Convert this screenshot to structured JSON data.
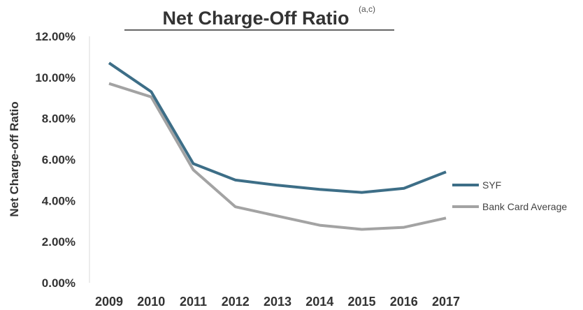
{
  "chart_data": {
    "type": "line",
    "title": "Net Charge-Off Ratio",
    "title_superscript": "(a,c)",
    "ylabel": "Net Charge-off Ratio",
    "xlabel": "",
    "categories": [
      "2009",
      "2010",
      "2011",
      "2012",
      "2013",
      "2014",
      "2015",
      "2016",
      "2017"
    ],
    "y_ticks": [
      "0.00%",
      "2.00%",
      "4.00%",
      "6.00%",
      "8.00%",
      "10.00%",
      "12.00%"
    ],
    "ylim": [
      0,
      12
    ],
    "grid": false,
    "legend_position": "right",
    "series": [
      {
        "name": "SYF",
        "color": "#3d6e87",
        "values": [
          10.7,
          9.3,
          5.8,
          5.0,
          4.75,
          4.55,
          4.4,
          4.6,
          5.4
        ]
      },
      {
        "name": "Bank Card Average",
        "color": "#a3a3a3",
        "values": [
          9.7,
          9.05,
          5.5,
          3.7,
          3.25,
          2.8,
          2.6,
          2.7,
          3.15
        ]
      }
    ]
  }
}
